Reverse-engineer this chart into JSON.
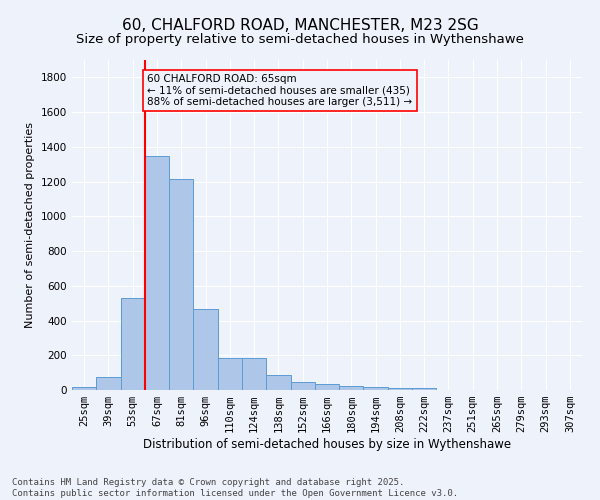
{
  "title1": "60, CHALFORD ROAD, MANCHESTER, M23 2SG",
  "title2": "Size of property relative to semi-detached houses in Wythenshawe",
  "xlabel": "Distribution of semi-detached houses by size in Wythenshawe",
  "ylabel": "Number of semi-detached properties",
  "bar_labels": [
    "25sqm",
    "39sqm",
    "53sqm",
    "67sqm",
    "81sqm",
    "96sqm",
    "110sqm",
    "124sqm",
    "138sqm",
    "152sqm",
    "166sqm",
    "180sqm",
    "194sqm",
    "208sqm",
    "222sqm",
    "237sqm",
    "251sqm",
    "265sqm",
    "279sqm",
    "293sqm",
    "307sqm"
  ],
  "bar_values": [
    20,
    75,
    530,
    1350,
    1215,
    465,
    185,
    185,
    85,
    45,
    35,
    25,
    20,
    10,
    10,
    0,
    0,
    0,
    0,
    0,
    0
  ],
  "bar_color": "#aec6e8",
  "bar_edge_color": "#5b9bd5",
  "vline_color": "red",
  "annotation_text": "60 CHALFORD ROAD: 65sqm\n← 11% of semi-detached houses are smaller (435)\n88% of semi-detached houses are larger (3,511) →",
  "ylim": [
    0,
    1900
  ],
  "yticks": [
    0,
    200,
    400,
    600,
    800,
    1000,
    1200,
    1400,
    1600,
    1800
  ],
  "background_color": "#eef2fb",
  "grid_color": "#ffffff",
  "footer": "Contains HM Land Registry data © Crown copyright and database right 2025.\nContains public sector information licensed under the Open Government Licence v3.0.",
  "title1_fontsize": 11,
  "title2_fontsize": 9.5,
  "xlabel_fontsize": 8.5,
  "ylabel_fontsize": 8,
  "tick_fontsize": 7.5,
  "annot_fontsize": 7.5,
  "footer_fontsize": 6.5
}
